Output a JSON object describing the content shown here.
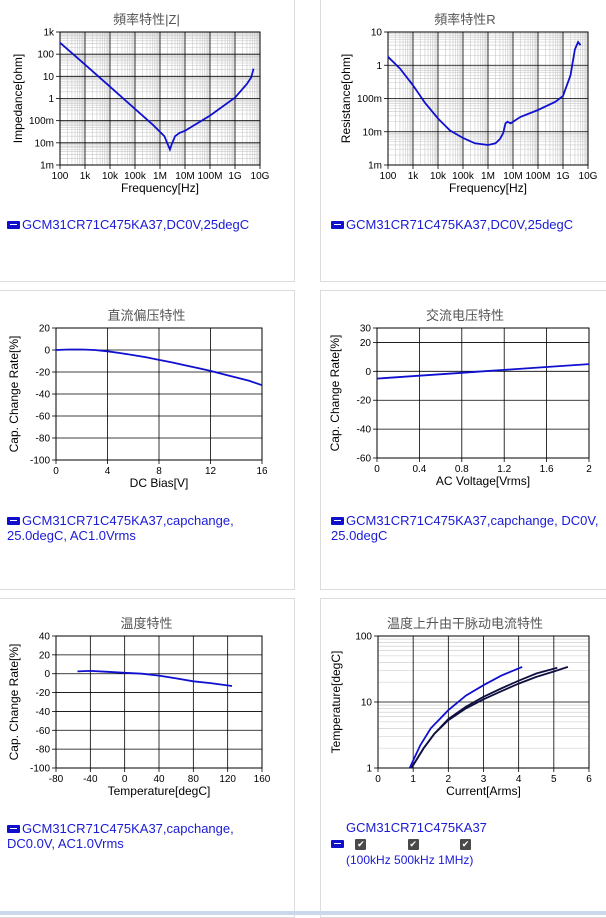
{
  "colors": {
    "series": "#1010d0",
    "series_dark": "#101040"
  },
  "panels": [
    {
      "title": "頻率特性|Z|",
      "legend": "GCM31CR71C475KA37,DC0V,25degC",
      "chart_data": {
        "type": "line",
        "xscale": "log",
        "yscale": "log",
        "xlabel": "Frequency[Hz]",
        "ylabel": "Impedance[ohm]",
        "xlim": [
          100,
          10000000000
        ],
        "ylim": [
          0.001,
          1000
        ],
        "xticks": [
          "100",
          "1k",
          "10k",
          "100k",
          "1M",
          "10M",
          "100M",
          "1G",
          "10G"
        ],
        "yticks": [
          "1k",
          "100",
          "10",
          "1",
          "100m",
          "10m",
          "1m"
        ],
        "series": [
          {
            "x": [
              100,
              1000,
              10000,
              100000,
              500000,
              1500000,
              2500000,
              3000000,
              4000000,
              6000000,
              10000000,
              100000000,
              1000000000,
              3000000000,
              4500000000,
              5500000000
            ],
            "y": [
              330,
              34,
              3.4,
              0.34,
              0.068,
              0.02,
              0.005,
              0.009,
              0.02,
              0.028,
              0.035,
              0.17,
              1.1,
              4.5,
              9,
              22
            ]
          }
        ]
      }
    },
    {
      "title": "頻率特性R",
      "legend": "GCM31CR71C475KA37,DC0V,25degC",
      "chart_data": {
        "type": "line",
        "xscale": "log",
        "yscale": "log",
        "xlabel": "Frequency[Hz]",
        "ylabel": "Resistance[ohm]",
        "xlim": [
          100,
          10000000000
        ],
        "ylim": [
          0.001,
          10
        ],
        "xticks": [
          "100",
          "1k",
          "10k",
          "100k",
          "1M",
          "10M",
          "100M",
          "1G",
          "10G"
        ],
        "yticks": [
          "10",
          "1",
          "100m",
          "10m",
          "1m"
        ],
        "series": [
          {
            "x": [
              100,
              300,
              1000,
              3000,
              10000,
              30000,
              100000,
              300000,
              1000000,
              2000000,
              3000000,
              4000000,
              5000000,
              6000000,
              8000000,
              10000000,
              20000000,
              100000000,
              500000000,
              1000000000,
              2000000000,
              3000000000,
              4000000000,
              5000000000
            ],
            "y": [
              1.8,
              0.8,
              0.25,
              0.075,
              0.025,
              0.011,
              0.0065,
              0.0045,
              0.004,
              0.0045,
              0.006,
              0.009,
              0.018,
              0.02,
              0.018,
              0.02,
              0.028,
              0.045,
              0.08,
              0.12,
              0.5,
              3,
              5,
              4
            ]
          }
        ]
      }
    },
    {
      "title": "直流偏压特性",
      "legend": "GCM31CR71C475KA37,capchange,\n25.0degC, AC1.0Vrms",
      "legend_lines": [
        "GCM31CR71C475KA37,capchange,",
        "25.0degC, AC1.0Vrms"
      ],
      "chart_data": {
        "type": "line",
        "xlabel": "DC Bias[V]",
        "ylabel": "Cap. Change Rate[%]",
        "xlim": [
          0,
          16
        ],
        "ylim": [
          -100,
          20
        ],
        "xticks": [
          "0",
          "4",
          "8",
          "12",
          "16"
        ],
        "yticks": [
          "20",
          "0",
          "-20",
          "-40",
          "-60",
          "-80",
          "-100"
        ],
        "series": [
          {
            "x": [
              0,
              1,
              2,
              3,
              4,
              5,
              6,
              7,
              8,
              9,
              10,
              11,
              12,
              13,
              14,
              15,
              16
            ],
            "y": [
              0,
              0.5,
              0.5,
              0,
              -1.2,
              -2.8,
              -4.6,
              -6.6,
              -9,
              -11.3,
              -13.8,
              -16.4,
              -19,
              -22,
              -25,
              -28,
              -32
            ]
          }
        ]
      }
    },
    {
      "title": "交流电压特性",
      "legend_lines": [
        "GCM31CR71C475KA37,capchange, DC0V,",
        "25.0degC"
      ],
      "chart_data": {
        "type": "line",
        "xlabel": "AC Voltage[Vrms]",
        "ylabel": "Cap. Change Rate[%]",
        "xlim": [
          0,
          2
        ],
        "ylim": [
          -60,
          30
        ],
        "xticks": [
          "0",
          "0.4",
          "0.8",
          "1.2",
          "1.6",
          "2"
        ],
        "yticks": [
          "30",
          "20",
          "0",
          "-20",
          "-40",
          "-60"
        ],
        "series": [
          {
            "x": [
              0,
              0.4,
              0.8,
              1.0,
              1.2,
              1.6,
              2.0
            ],
            "y": [
              -5,
              -3,
              -1,
              0,
              1,
              3,
              5
            ]
          }
        ]
      }
    },
    {
      "title": "温度特性",
      "legend_lines": [
        "GCM31CR71C475KA37,capchange,",
        "DC0.0V, AC1.0Vrms"
      ],
      "chart_data": {
        "type": "line",
        "xlabel": "Temperature[degC]",
        "ylabel": "Cap. Change Rate[%]",
        "xlim": [
          -80,
          160
        ],
        "ylim": [
          -100,
          40
        ],
        "xticks": [
          "-80",
          "-40",
          "0",
          "40",
          "80",
          "120",
          "160"
        ],
        "yticks": [
          "40",
          "20",
          "0",
          "-20",
          "-40",
          "-60",
          "-80",
          "-100"
        ],
        "series": [
          {
            "x": [
              -55,
              -40,
              -20,
              0,
              20,
              40,
              60,
              80,
              100,
              125
            ],
            "y": [
              2.5,
              3,
              2,
              1,
              0,
              -2,
              -5,
              -8,
              -10,
              -13
            ]
          }
        ]
      }
    },
    {
      "title": "温度上升由干脉动电流特性",
      "legend_name": "GCM31CR71C475KA37",
      "legend_checks": [
        "100kHz",
        "500kHz",
        "1MHz"
      ],
      "chart_data": {
        "type": "line",
        "yscale": "log",
        "xlabel": "Current[Arms]",
        "ylabel": "Temperature[degC]",
        "xlim": [
          0,
          6
        ],
        "ylim": [
          1,
          100
        ],
        "xticks": [
          "0",
          "1",
          "2",
          "3",
          "4",
          "5",
          "6"
        ],
        "yticks": [
          "100",
          "10",
          "1"
        ],
        "series": [
          {
            "name": "100kHz",
            "x": [
              0.9,
              1.2,
              1.5,
              2,
              2.5,
              3,
              3.5,
              4.1
            ],
            "y": [
              1,
              2.2,
              4,
              7.5,
              12.5,
              18,
              25,
              34
            ]
          },
          {
            "name": "500kHz",
            "x": [
              0.95,
              1.3,
              1.6,
              2,
              2.5,
              3,
              3.5,
              4,
              4.5,
              5.1
            ],
            "y": [
              1,
              2,
              3.3,
              5.5,
              8.5,
              12,
              16,
              21,
              27,
              33
            ]
          },
          {
            "name": "1MHz",
            "x": [
              0.95,
              1.3,
              1.6,
              2,
              2.5,
              3,
              3.5,
              4,
              4.5,
              5,
              5.4
            ],
            "y": [
              1,
              2,
              3.3,
              5.3,
              8,
              11,
              14.5,
              19,
              24,
              29,
              34
            ]
          }
        ]
      }
    }
  ]
}
